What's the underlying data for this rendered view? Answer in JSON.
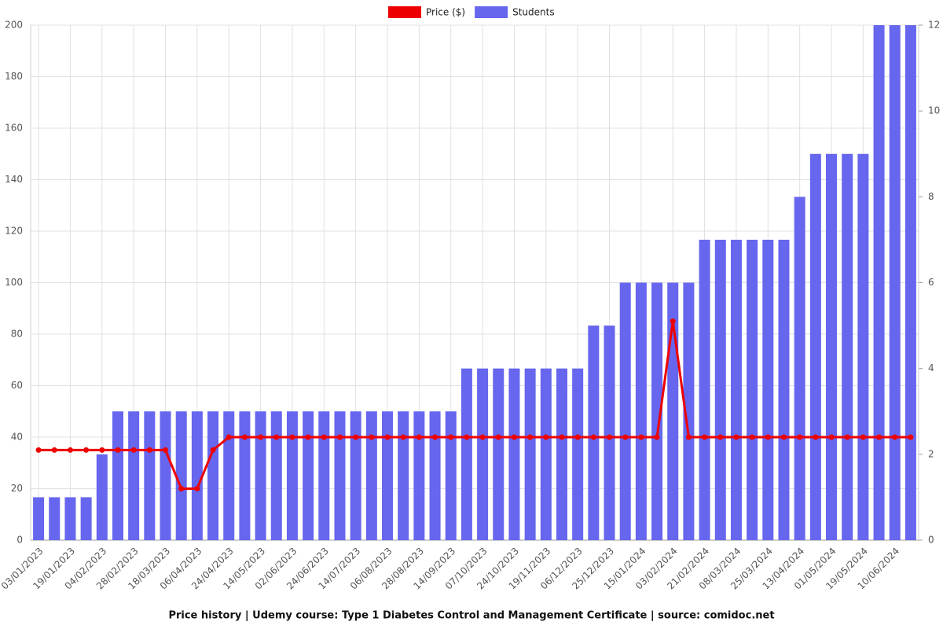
{
  "chart_data": {
    "type": "bar-line",
    "title": "Price history | Udemy course: Type 1 Diabetes Control and Management Certificate | source: comidoc.net",
    "categories": [
      "03/01/2023",
      null,
      "19/01/2023",
      null,
      "04/02/2023",
      null,
      "28/02/2023",
      null,
      "18/03/2023",
      null,
      "06/04/2023",
      null,
      "24/04/2023",
      null,
      "14/05/2023",
      null,
      "02/06/2023",
      null,
      "24/06/2023",
      null,
      "14/07/2023",
      null,
      "06/08/2023",
      null,
      "28/08/2023",
      null,
      "14/09/2023",
      null,
      "07/10/2023",
      null,
      "24/10/2023",
      null,
      "19/11/2023",
      null,
      "06/12/2023",
      null,
      "25/12/2023",
      null,
      "15/01/2024",
      null,
      "03/02/2024",
      null,
      "21/02/2024",
      null,
      "08/03/2024",
      null,
      "25/03/2024",
      null,
      "13/04/2024",
      null,
      "01/05/2024",
      null,
      "19/05/2024",
      null,
      "10/06/2024",
      null
    ],
    "series": [
      {
        "name": "Price ($)",
        "type": "line",
        "color": "#ee0000",
        "values": [
          35,
          35,
          35,
          35,
          35,
          35,
          35,
          35,
          35,
          20,
          20,
          35,
          40,
          40,
          40,
          40,
          40,
          40,
          40,
          40,
          40,
          40,
          40,
          40,
          40,
          40,
          40,
          40,
          40,
          40,
          40,
          40,
          40,
          40,
          40,
          40,
          40,
          40,
          40,
          40,
          85,
          40,
          40,
          40,
          40,
          40,
          40,
          40,
          40,
          40,
          40,
          40,
          40,
          40,
          40,
          40
        ]
      },
      {
        "name": "Students",
        "type": "bar",
        "axis": "y2",
        "color": "#6666ee",
        "values": [
          1,
          1,
          1,
          1,
          2,
          3,
          3,
          3,
          3,
          3,
          3,
          3,
          3,
          3,
          3,
          3,
          3,
          3,
          3,
          3,
          3,
          3,
          3,
          3,
          3,
          3,
          3,
          4,
          4,
          4,
          4,
          4,
          4,
          4,
          4,
          5,
          5,
          6,
          6,
          6,
          6,
          6,
          7,
          7,
          7,
          7,
          7,
          7,
          8,
          9,
          9,
          9,
          9,
          12,
          12,
          12
        ]
      }
    ],
    "ylim": [
      0,
      200
    ],
    "yticks": [
      0,
      20,
      40,
      60,
      80,
      100,
      120,
      140,
      160,
      180,
      200
    ],
    "y2lim": [
      0,
      12
    ],
    "y2ticks": [
      0,
      2,
      4,
      6,
      8,
      10,
      12
    ],
    "grid": true,
    "legend": "top"
  }
}
